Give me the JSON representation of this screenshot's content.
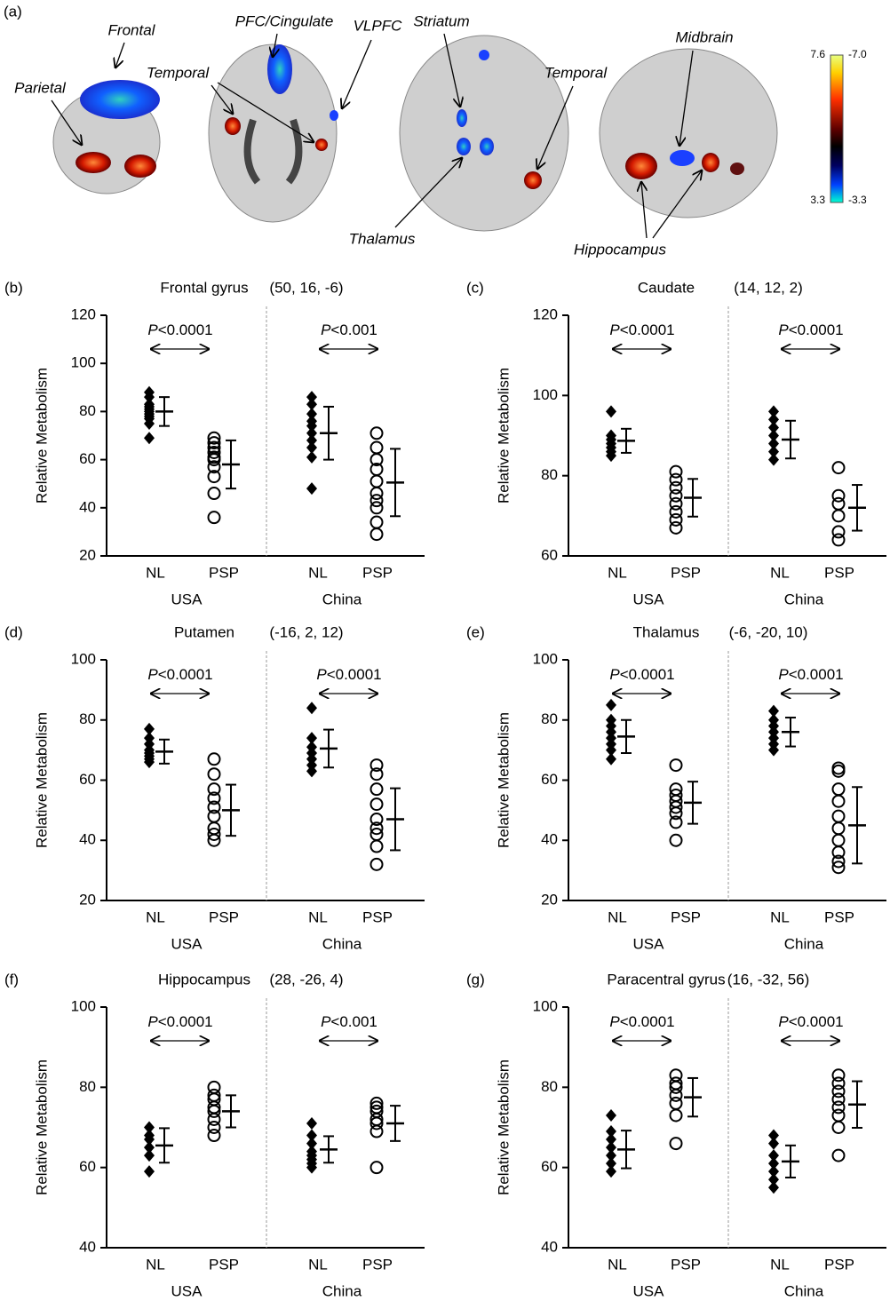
{
  "panel_a": {
    "panel_label": "(a)",
    "labels": [
      "Frontal",
      "Parietal",
      "PFC/Cingulate",
      "VLPFC",
      "Temporal",
      "Striatum",
      "Temporal",
      "Midbrain",
      "Thalamus",
      "Hippocampus"
    ],
    "colorbar": {
      "hot_max": 7.6,
      "hot_min": 3.3,
      "cold_max": {
        "value": -7,
        "label": "-7.0"
      },
      "cold_min": -3.3
    }
  },
  "chart_data": [
    {
      "type": "strip",
      "panel_label": "(b)",
      "title": "Frontal gyrus",
      "coordinates": "(50, 16, -6)",
      "ylabel": "Relative Metabolism",
      "ylim": [
        20,
        120
      ],
      "yticks": [
        20,
        40,
        60,
        80,
        100,
        120
      ],
      "groups": [
        "USA",
        "China"
      ],
      "categories": [
        "NL",
        "PSP",
        "NL",
        "PSP"
      ],
      "markers": [
        "diamond",
        "circle",
        "diamond",
        "circle"
      ],
      "color": "#000000",
      "p_symbol": "P",
      "p_values": [
        "<0.0001",
        "<0.001"
      ],
      "points": [
        [
          69,
          75,
          77,
          78,
          79,
          80,
          81,
          82,
          83,
          86,
          88
        ],
        [
          36,
          46,
          53,
          57,
          60,
          61,
          63,
          65,
          67,
          69
        ],
        [
          48,
          61,
          65,
          68,
          71,
          74,
          76,
          79,
          83,
          86
        ],
        [
          29,
          34,
          40,
          43,
          46,
          51,
          56,
          60,
          65,
          71
        ]
      ],
      "means": [
        80,
        58,
        71,
        50.5
      ],
      "sds": [
        6,
        10,
        11,
        14
      ]
    },
    {
      "type": "strip",
      "panel_label": "(c)",
      "title": "Caudate",
      "coordinates": "(14, 12, 2)",
      "ylabel": "Relative Metabolism",
      "ylim": [
        60,
        120
      ],
      "yticks": [
        60,
        80,
        100,
        120
      ],
      "groups": [
        "USA",
        "China"
      ],
      "categories": [
        "NL",
        "PSP",
        "NL",
        "PSP"
      ],
      "markers": [
        "diamond",
        "circle",
        "diamond",
        "circle"
      ],
      "color": "#000000",
      "p_symbol": "P",
      "p_values": [
        "<0.0001",
        "<0.0001"
      ],
      "points": [
        [
          85,
          86,
          87,
          88,
          89,
          90,
          96
        ],
        [
          67,
          69,
          71,
          73,
          75,
          77,
          79,
          81
        ],
        [
          84,
          86,
          88,
          90,
          92,
          94,
          96
        ],
        [
          64,
          66,
          70,
          73,
          75,
          82
        ]
      ],
      "means": [
        88.7,
        74.5,
        89,
        72
      ],
      "sds": [
        3,
        4.7,
        4.7,
        5.7
      ]
    },
    {
      "type": "strip",
      "panel_label": "(d)",
      "title": "Putamen",
      "coordinates": "(-16, 2, 12)",
      "ylabel": "Relative Metabolism",
      "ylim": [
        20,
        100
      ],
      "yticks": [
        20,
        40,
        60,
        80,
        100
      ],
      "groups": [
        "USA",
        "China"
      ],
      "categories": [
        "NL",
        "PSP",
        "NL",
        "PSP"
      ],
      "markers": [
        "diamond",
        "circle",
        "diamond",
        "circle"
      ],
      "color": "#000000",
      "p_symbol": "P",
      "p_values": [
        "<0.0001",
        "<0.0001"
      ],
      "points": [
        [
          66,
          67,
          68,
          69,
          70,
          72,
          74,
          77
        ],
        [
          40,
          42,
          44,
          48,
          51,
          54,
          57,
          62,
          67
        ],
        [
          63,
          65,
          67,
          69,
          71,
          74,
          84
        ],
        [
          32,
          38,
          42,
          44,
          47,
          52,
          57,
          62,
          65
        ]
      ],
      "means": [
        69.5,
        50,
        70.5,
        47
      ],
      "sds": [
        4,
        8.5,
        6.3,
        10.3
      ]
    },
    {
      "type": "strip",
      "panel_label": "(e)",
      "title": "Thalamus",
      "coordinates": "(-6, -20, 10)",
      "ylabel": "Relative Metabolism",
      "ylim": [
        20,
        100
      ],
      "yticks": [
        20,
        40,
        60,
        80,
        100
      ],
      "groups": [
        "USA",
        "China"
      ],
      "categories": [
        "NL",
        "PSP",
        "NL",
        "PSP"
      ],
      "markers": [
        "diamond",
        "circle",
        "diamond",
        "circle"
      ],
      "color": "#000000",
      "p_symbol": "P",
      "p_values": [
        "<0.0001",
        "<0.0001"
      ],
      "points": [
        [
          67,
          70,
          72,
          74,
          76,
          78,
          80,
          85
        ],
        [
          40,
          46,
          49,
          51,
          53,
          55,
          57,
          65
        ],
        [
          70,
          72,
          74,
          76,
          78,
          80,
          83
        ],
        [
          31,
          33,
          36,
          40,
          44,
          48,
          53,
          57,
          63,
          64
        ]
      ],
      "means": [
        74.5,
        52.5,
        76,
        45
      ],
      "sds": [
        5.5,
        7,
        4.8,
        12.7
      ]
    },
    {
      "type": "strip",
      "panel_label": "(f)",
      "title": "Hippocampus",
      "coordinates": "(28, -26, 4)",
      "ylabel": "Relative Metabolism",
      "ylim": [
        40,
        100
      ],
      "yticks": [
        40,
        60,
        80,
        100
      ],
      "groups": [
        "USA",
        "China"
      ],
      "categories": [
        "NL",
        "PSP",
        "NL",
        "PSP"
      ],
      "markers": [
        "diamond",
        "circle",
        "diamond",
        "circle"
      ],
      "color": "#000000",
      "p_symbol": "P",
      "p_values": [
        "<0.0001",
        "<0.001"
      ],
      "points": [
        [
          59,
          63,
          65,
          67,
          68,
          70
        ],
        [
          68,
          70,
          72,
          74,
          75,
          77,
          78,
          80
        ],
        [
          60,
          61,
          62,
          63,
          64,
          66,
          68,
          71
        ],
        [
          60,
          69,
          71,
          72,
          74,
          75,
          76
        ]
      ],
      "means": [
        65.5,
        74,
        64.5,
        71
      ],
      "sds": [
        4.3,
        4,
        3.3,
        4.4
      ]
    },
    {
      "type": "strip",
      "panel_label": "(g)",
      "title": "Paracentral gyrus",
      "coordinates": "(16, -32, 56)",
      "ylabel": "Relative Metabolism",
      "ylim": [
        40,
        100
      ],
      "yticks": [
        40,
        60,
        80,
        100
      ],
      "groups": [
        "USA",
        "China"
      ],
      "categories": [
        "NL",
        "PSP",
        "NL",
        "PSP"
      ],
      "markers": [
        "diamond",
        "circle",
        "diamond",
        "circle"
      ],
      "color": "#000000",
      "p_symbol": "P",
      "p_values": [
        "<0.0001",
        "<0.0001"
      ],
      "points": [
        [
          59,
          61,
          63,
          65,
          67,
          69,
          73
        ],
        [
          66,
          73,
          76,
          78,
          80,
          81,
          83
        ],
        [
          55,
          57,
          59,
          61,
          63,
          66,
          68
        ],
        [
          63,
          70,
          73,
          75,
          77,
          79,
          81,
          83
        ]
      ],
      "means": [
        64.5,
        77.5,
        61.5,
        75.7
      ],
      "sds": [
        4.7,
        4.8,
        4,
        5.8
      ]
    }
  ]
}
